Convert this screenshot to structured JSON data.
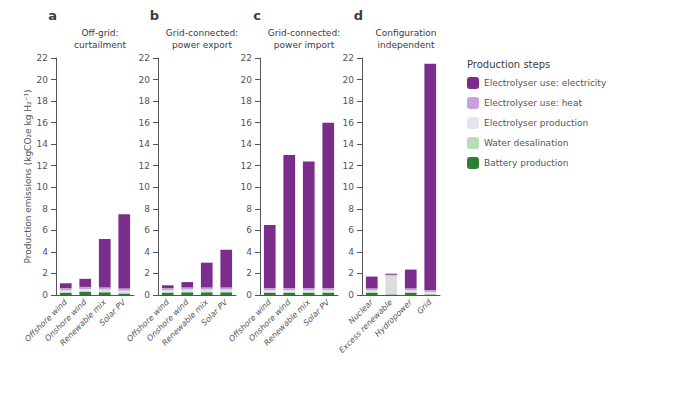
{
  "chart_data": [
    {
      "type": "bar",
      "stacked": true,
      "title": "Off-grid:\ncurtailment",
      "annotations": [
        "a"
      ],
      "ylabel": "Production emissions (kgCO₂e kg H₂⁻¹)",
      "categories": [
        "Offshore wind",
        "Onshore wind",
        "Renewable mix",
        "Solar PV"
      ],
      "series": [
        {
          "name": "Battery production",
          "color": "#2e7d32",
          "values": [
            0.2,
            0.3,
            0.25,
            0.15
          ]
        },
        {
          "name": "Water desalination",
          "color": "#b8ddb8",
          "values": [
            0.1,
            0.1,
            0.1,
            0.1
          ]
        },
        {
          "name": "Electrolyser production",
          "color": "#e8e4ef",
          "values": [
            0.15,
            0.15,
            0.15,
            0.15
          ]
        },
        {
          "name": "Electrolyser use: heat",
          "color": "#c9a0dc",
          "values": [
            0.2,
            0.2,
            0.2,
            0.2
          ]
        },
        {
          "name": "Electrolyser use: electricity",
          "color": "#7b2d8b",
          "values": [
            0.45,
            0.75,
            4.5,
            6.9
          ]
        }
      ],
      "ylim": [
        0,
        22
      ],
      "yticks": [
        0,
        2,
        4,
        6,
        8,
        10,
        12,
        14,
        16,
        18,
        20,
        22
      ],
      "grid": false
    },
    {
      "type": "bar",
      "stacked": true,
      "title": "Grid-connected:\npower export",
      "annotations": [
        "b"
      ],
      "categories": [
        "Offshore wind",
        "Onshore wind",
        "Renewable mix",
        "Solar PV"
      ],
      "series": [
        {
          "name": "Battery production",
          "color": "#2e7d32",
          "values": [
            0.2,
            0.25,
            0.25,
            0.25
          ]
        },
        {
          "name": "Water desalination",
          "color": "#b8ddb8",
          "values": [
            0.1,
            0.1,
            0.1,
            0.1
          ]
        },
        {
          "name": "Electrolyser production",
          "color": "#e8e4ef",
          "values": [
            0.15,
            0.15,
            0.15,
            0.15
          ]
        },
        {
          "name": "Electrolyser use: heat",
          "color": "#c9a0dc",
          "values": [
            0.2,
            0.2,
            0.2,
            0.2
          ]
        },
        {
          "name": "Electrolyser use: electricity",
          "color": "#7b2d8b",
          "values": [
            0.25,
            0.5,
            2.3,
            3.5
          ]
        }
      ],
      "ylim": [
        0,
        22
      ],
      "yticks": [
        0,
        2,
        4,
        6,
        8,
        10,
        12,
        14,
        16,
        18,
        20,
        22
      ],
      "grid": false
    },
    {
      "type": "bar",
      "stacked": true,
      "title": "Grid-connected:\npower import",
      "annotations": [
        "c"
      ],
      "categories": [
        "Offshore wind",
        "Onshore wind",
        "Renewable mix",
        "Solar PV"
      ],
      "series": [
        {
          "name": "Battery production",
          "color": "#2e7d32",
          "values": [
            0.2,
            0.2,
            0.2,
            0.2
          ]
        },
        {
          "name": "Water desalination",
          "color": "#b8ddb8",
          "values": [
            0.1,
            0.1,
            0.1,
            0.1
          ]
        },
        {
          "name": "Electrolyser production",
          "color": "#e8e4ef",
          "values": [
            0.15,
            0.15,
            0.15,
            0.15
          ]
        },
        {
          "name": "Electrolyser use: heat",
          "color": "#c9a0dc",
          "values": [
            0.2,
            0.2,
            0.2,
            0.2
          ]
        },
        {
          "name": "Electrolyser use: electricity",
          "color": "#7b2d8b",
          "values": [
            5.85,
            12.35,
            11.75,
            15.35
          ]
        }
      ],
      "ylim": [
        0,
        22
      ],
      "yticks": [
        0,
        2,
        4,
        6,
        8,
        10,
        12,
        14,
        16,
        18,
        20,
        22
      ],
      "grid": false
    },
    {
      "type": "bar",
      "stacked": true,
      "title": "Configuration\nindependent",
      "annotations": [
        "d"
      ],
      "categories": [
        "Nuclear",
        "Excess renewable",
        "Hydropower",
        "Grid"
      ],
      "series": [
        {
          "name": "Battery production",
          "color": "#2e7d32",
          "values": [
            0.2,
            0.05,
            0.2,
            0.05
          ]
        },
        {
          "name": "Water desalination",
          "color": "#b8ddb8",
          "values": [
            0.08,
            0.05,
            0.08,
            0.08
          ]
        },
        {
          "name": "Electrolyser production",
          "color": "#e8e4ef",
          "colors": [
            "#e8e4ef",
            "#dcdcdc",
            "#e8e4ef",
            "#e8e4ef"
          ],
          "values": [
            0.15,
            1.7,
            0.15,
            0.15
          ]
        },
        {
          "name": "Electrolyser use: heat",
          "color": "#c9a0dc",
          "values": [
            0.18,
            0.08,
            0.18,
            0.18
          ]
        },
        {
          "name": "Electrolyser use: electricity",
          "color": "#7b2d8b",
          "values": [
            1.1,
            0.1,
            1.75,
            21.0
          ]
        }
      ],
      "ylim": [
        0,
        22
      ],
      "yticks": [
        0,
        2,
        4,
        6,
        8,
        10,
        12,
        14,
        16,
        18,
        20,
        22
      ],
      "grid": false,
      "legend": "right",
      "legend_title": "Production steps"
    }
  ]
}
